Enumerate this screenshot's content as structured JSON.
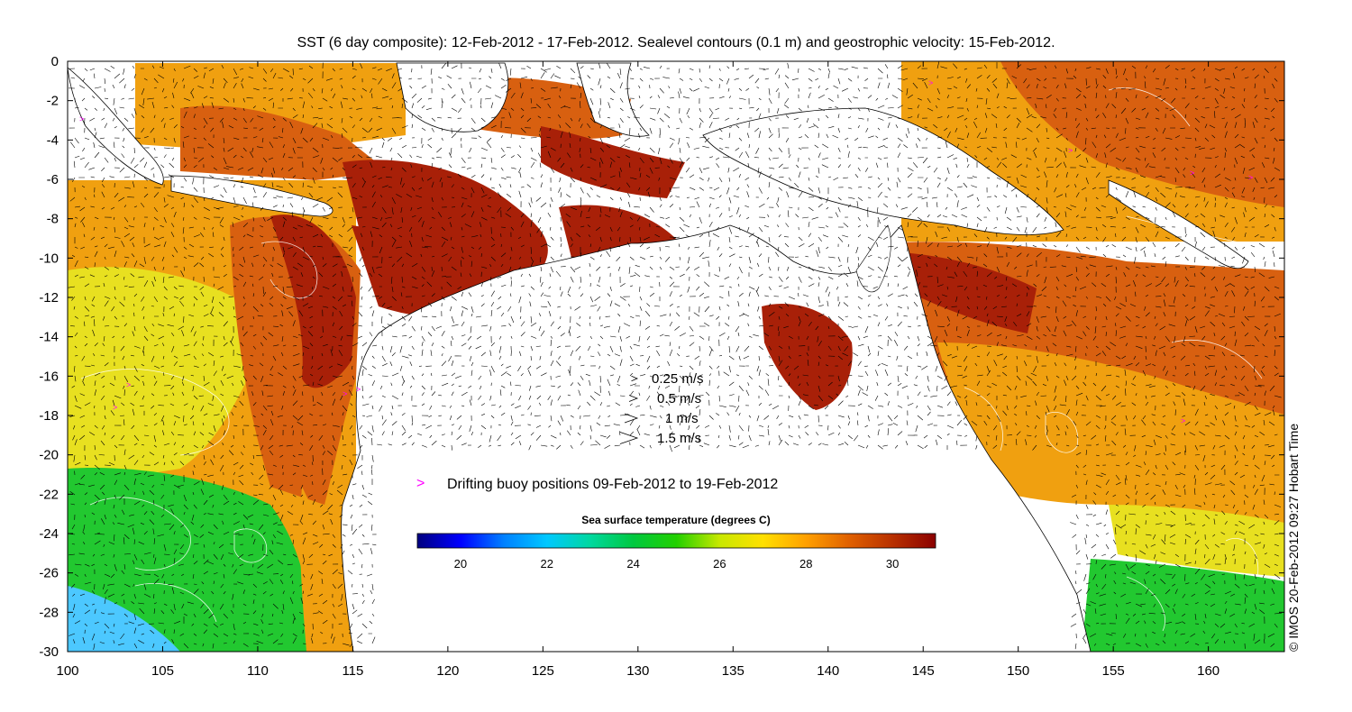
{
  "title": "SST (6 day composite): 12-Feb-2012 - 17-Feb-2012. Sealevel contours (0.1 m) and geostrophic velocity: 15-Feb-2012.",
  "credit": "© IMOS 20-Feb-2012 09:27 Hobart Time",
  "x_ticks": [
    "100",
    "105",
    "110",
    "115",
    "120",
    "125",
    "130",
    "135",
    "140",
    "145",
    "150",
    "155",
    "160"
  ],
  "y_ticks": [
    "0",
    "-2",
    "-4",
    "-6",
    "-8",
    "-10",
    "-12",
    "-14",
    "-16",
    "-18",
    "-20",
    "-22",
    "-24",
    "-26",
    "-28",
    "-30"
  ],
  "velocity_legend": [
    {
      "label": "0.25 m/s",
      "speed": 0.25
    },
    {
      "label": "0.5 m/s",
      "speed": 0.5
    },
    {
      "label": "1 m/s",
      "speed": 1
    },
    {
      "label": "1.5 m/s",
      "speed": 1.5
    }
  ],
  "buoy_legend": {
    "glyph": ">",
    "label": "Drifting buoy positions 09-Feb-2012 to 19-Feb-2012",
    "color": "#ff00ff"
  },
  "colorbar": {
    "title": "Sea surface temperature (degrees C)",
    "range": [
      19,
      31
    ],
    "ticks": [
      "20",
      "22",
      "24",
      "26",
      "28",
      "30"
    ],
    "colors": [
      "#00007f",
      "#0000ff",
      "#0080ff",
      "#00c8ff",
      "#00d8a0",
      "#00c840",
      "#22d000",
      "#c8e800",
      "#ffe000",
      "#ffa000",
      "#e06000",
      "#b83000",
      "#8b0000"
    ]
  },
  "map_extent": {
    "lon": [
      100,
      164
    ],
    "lat": [
      -30,
      0
    ]
  },
  "sst_colors": {
    "cool": "#22c830",
    "cold": "#4cc8ff",
    "mild": "#e8e020",
    "warm": "#f0a010",
    "hot": "#d86010",
    "veryhot": "#a82008"
  }
}
